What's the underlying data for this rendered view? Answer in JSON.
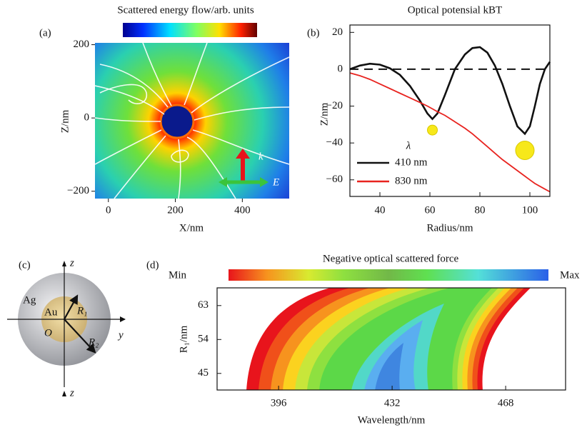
{
  "chart_data": [
    {
      "type": "field",
      "label": "(a)",
      "title": "Scattered energy flow/arb. units",
      "xlabel": "X/nm",
      "ylabel": "Z/nm",
      "annotations": [
        "k",
        "E"
      ],
      "xlim": [
        -40,
        540
      ],
      "ylim": [
        -220,
        205
      ],
      "xticks": [
        0,
        200,
        400
      ],
      "yticks": [
        200,
        0,
        {
          "value": -200,
          "label": "−200"
        }
      ]
    },
    {
      "type": "line",
      "label": "(b)",
      "title": "Optical potensial kBT",
      "xlabel": "Radius/nm",
      "ylabel": "Z/nm",
      "legend_title": "λ",
      "xlim": [
        28,
        108
      ],
      "ylim": [
        -69,
        24
      ],
      "xticks": [
        40,
        60,
        80,
        100
      ],
      "yticks": [
        20,
        0,
        {
          "value": -20,
          "label": "−20"
        },
        {
          "value": -40,
          "label": "−40"
        },
        {
          "value": -60,
          "label": "−60"
        }
      ],
      "hline": 0,
      "x": [
        28,
        32,
        36,
        40,
        44,
        48,
        52,
        56,
        59,
        61,
        63,
        66,
        70,
        74,
        77,
        80,
        83,
        86,
        89,
        92,
        95,
        98,
        100,
        102,
        104,
        106,
        108
      ],
      "series": [
        {
          "name": "410 nm",
          "color": "#111111",
          "values": [
            0,
            2,
            3,
            2.5,
            0.5,
            -3,
            -9,
            -17,
            -24,
            -27,
            -24,
            -14,
            0,
            8,
            11.5,
            12,
            9,
            2,
            -8,
            -20,
            -31,
            -35,
            -31,
            -20,
            -8,
            0,
            4
          ]
        },
        {
          "name": "830 nm",
          "color": "#e8231f",
          "values": [
            -2,
            -3.5,
            -5.5,
            -8,
            -10.5,
            -13,
            -15.5,
            -18,
            -20,
            -21.5,
            -23,
            -25,
            -28.5,
            -32,
            -35,
            -38.5,
            -42,
            -45.5,
            -49,
            -52,
            -55,
            -58,
            -60,
            -62,
            -63.5,
            -65,
            -66.5
          ]
        }
      ],
      "particles": [
        {
          "x": 61,
          "y": -33,
          "color": "#f7e81a"
        },
        {
          "x": 98,
          "y": -44,
          "color": "#f7e81a"
        }
      ]
    },
    {
      "type": "contour",
      "label": "(d)",
      "title": "Negative optical scattered force",
      "colorbar_labels": [
        "Min",
        "Max"
      ],
      "xlabel": "Wavelength/nm",
      "ylabel": "R₁/nm",
      "xlim": [
        376.5,
        487
      ],
      "ylim": [
        40.6,
        67.7
      ],
      "xticks": [
        396,
        432,
        468
      ],
      "yticks": [
        45,
        54,
        63
      ]
    }
  ],
  "diagram": {
    "label": "(c)",
    "axis_top": "z",
    "axis_bottom": "z",
    "axis_right": "y",
    "shell": "Ag",
    "core": "Au",
    "r1": "R₁",
    "r2": "R₂",
    "origin": "O"
  }
}
